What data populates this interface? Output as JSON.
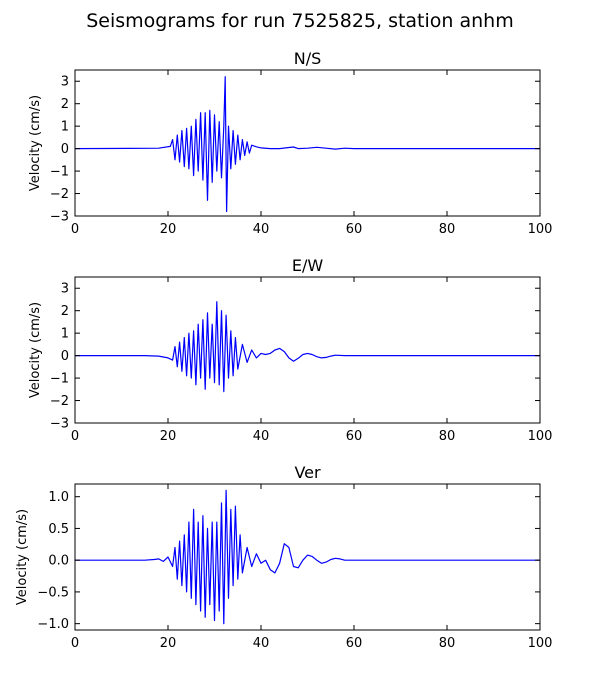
{
  "figure": {
    "title": "Seismograms for run 7525825, station anhm"
  },
  "chart_data": [
    {
      "type": "line",
      "title": "N/S",
      "xlabel": "",
      "ylabel": "Velocity (cm/s)",
      "xlim": [
        0,
        100
      ],
      "ylim": [
        -3,
        3.5
      ],
      "xticks": [
        0,
        20,
        40,
        60,
        80,
        100
      ],
      "yticks": [
        -3,
        -2,
        -1,
        0,
        1,
        2,
        3
      ],
      "grid": false,
      "series": [
        {
          "color": "#0000ff",
          "x": [
            0,
            18,
            20.5,
            21,
            21.5,
            22,
            22.5,
            23,
            23.5,
            24,
            24.5,
            25,
            25.5,
            26,
            26.5,
            27,
            27.5,
            28,
            28.5,
            29,
            29.5,
            30,
            30.5,
            31,
            31.5,
            32,
            32.3,
            32.6,
            33,
            33.5,
            34,
            34.5,
            35,
            35.5,
            36,
            36.5,
            37,
            37.5,
            38,
            39,
            40,
            42,
            44,
            46,
            47,
            48,
            50,
            52,
            54,
            56,
            58,
            60,
            100
          ],
          "y": [
            0,
            0.02,
            0.1,
            0.4,
            -0.5,
            0.6,
            -0.6,
            0.8,
            -0.8,
            0.9,
            -0.9,
            1.0,
            -1.2,
            1.3,
            -1.0,
            1.6,
            -1.4,
            1.6,
            -2.3,
            1.7,
            -1.5,
            1.5,
            -1.0,
            1.2,
            -1.3,
            1.0,
            3.2,
            -2.8,
            1.0,
            -0.9,
            0.8,
            -0.7,
            0.6,
            -0.5,
            0.4,
            -0.3,
            0.3,
            -0.2,
            0.15,
            0.08,
            0.03,
            0.0,
            0.0,
            0.05,
            0.07,
            0.0,
            0.02,
            0.06,
            0.02,
            -0.02,
            0.02,
            0.0,
            0.0
          ]
        }
      ]
    },
    {
      "type": "line",
      "title": "E/W",
      "xlabel": "",
      "ylabel": "Velocity (cm/s)",
      "xlim": [
        0,
        100
      ],
      "ylim": [
        -3,
        3.5
      ],
      "xticks": [
        0,
        20,
        40,
        60,
        80,
        100
      ],
      "yticks": [
        -3,
        -2,
        -1,
        0,
        1,
        2,
        3
      ],
      "grid": false,
      "series": [
        {
          "color": "#0000ff",
          "x": [
            0,
            15,
            18,
            20,
            21,
            21.5,
            22,
            22.5,
            23,
            23.5,
            24,
            24.5,
            25,
            25.5,
            26,
            26.5,
            27,
            27.5,
            28,
            28.5,
            29,
            29.5,
            30,
            30.5,
            31,
            31.5,
            32,
            32.5,
            33,
            33.5,
            34,
            34.5,
            35,
            36,
            37,
            38,
            39,
            40,
            41,
            42,
            43,
            44,
            45,
            46,
            47,
            48,
            49,
            50,
            51,
            52,
            53,
            54,
            55,
            56,
            58,
            60,
            100
          ],
          "y": [
            0,
            0,
            -0.02,
            -0.1,
            -0.2,
            0.4,
            -0.5,
            0.6,
            -0.7,
            0.8,
            -0.9,
            1.0,
            -1.0,
            1.1,
            -1.3,
            1.4,
            -1.0,
            1.6,
            -1.5,
            1.9,
            -1.0,
            1.4,
            -1.2,
            2.4,
            -1.3,
            2.0,
            -1.6,
            1.8,
            -1.0,
            1.1,
            -0.9,
            0.8,
            -0.6,
            0.5,
            -0.3,
            0.25,
            -0.1,
            0.1,
            0.05,
            0.1,
            0.25,
            0.32,
            0.18,
            -0.1,
            -0.25,
            -0.12,
            0.05,
            0.1,
            0.05,
            -0.05,
            -0.1,
            -0.08,
            -0.02,
            0.02,
            0.0,
            0.0,
            0.0
          ]
        }
      ]
    },
    {
      "type": "line",
      "title": "Ver",
      "xlabel": "",
      "ylabel": "Velocity (cm/s)",
      "xlim": [
        0,
        100
      ],
      "ylim": [
        -1.1,
        1.2
      ],
      "xticks": [
        0,
        20,
        40,
        60,
        80,
        100
      ],
      "yticks": [
        -1.0,
        -0.5,
        0.0,
        0.5,
        1.0
      ],
      "ytick_labels": [
        "−1.0",
        "−0.5",
        "0.0",
        "0.5",
        "1.0"
      ],
      "grid": false,
      "series": [
        {
          "color": "#0000ff",
          "x": [
            0,
            15,
            17,
            18,
            19,
            20,
            21,
            21.5,
            22,
            22.5,
            23,
            23.5,
            24,
            24.5,
            25,
            25.5,
            26,
            26.5,
            27,
            27.5,
            28,
            28.5,
            29,
            29.5,
            30,
            30.5,
            31,
            31.5,
            32,
            32.5,
            33,
            33.5,
            34,
            34.5,
            35,
            35.5,
            36,
            37,
            38,
            39,
            40,
            41,
            42,
            43,
            44,
            45,
            46,
            47,
            48,
            49,
            50,
            51,
            52,
            53,
            54,
            55,
            56,
            57,
            58,
            60,
            100
          ],
          "y": [
            0,
            0,
            0.01,
            0.02,
            -0.02,
            0.05,
            -0.1,
            0.2,
            -0.3,
            0.3,
            -0.4,
            0.4,
            -0.5,
            0.6,
            -0.6,
            0.8,
            -0.7,
            0.6,
            -0.8,
            0.7,
            -0.9,
            0.5,
            -0.7,
            0.6,
            -0.95,
            0.6,
            -0.8,
            0.9,
            -1.0,
            1.1,
            -0.6,
            0.8,
            -0.4,
            0.85,
            -0.3,
            0.4,
            -0.2,
            0.2,
            -0.1,
            0.1,
            -0.05,
            0.0,
            -0.15,
            -0.2,
            -0.05,
            0.26,
            0.2,
            -0.1,
            -0.12,
            0.0,
            0.08,
            0.06,
            0.0,
            -0.05,
            -0.03,
            0.01,
            0.03,
            0.02,
            0.0,
            0.0,
            0.0
          ]
        }
      ]
    }
  ]
}
